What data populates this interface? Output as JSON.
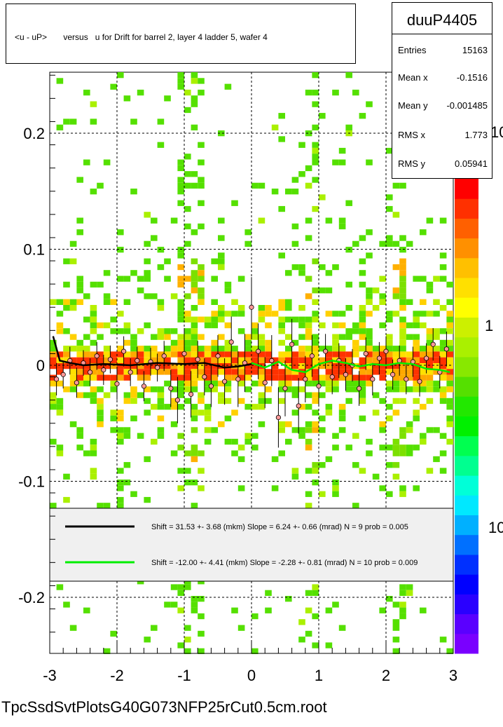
{
  "title": "<u - uP>       versus   u for Drift for barrel 2, layer 4 ladder 5, wafer 4",
  "stats": {
    "name": "duuP4405",
    "rows": [
      {
        "label": "Entries",
        "value": "15163"
      },
      {
        "label": "Mean x",
        "value": "-0.1516"
      },
      {
        "label": "Mean y",
        "value": "-0.001485"
      },
      {
        "label": "RMS x",
        "value": "1.773"
      },
      {
        "label": "RMS y",
        "value": "0.05941"
      }
    ]
  },
  "file_label": "TpcSsdSvtPlotsG40G073NFP25rCut0.5cm.root",
  "legend": [
    {
      "text": "Shift =    31.53 +- 3.68 (mkm) Slope =     6.24 +- 0.66 (mrad)  N = 9 prob = 0.005",
      "color": "#000000"
    },
    {
      "text": "Shift =   -12.00 +- 4.41 (mkm) Slope =    -2.28 +- 0.81 (mrad)  N = 10 prob = 0.009",
      "color": "#00ee00"
    }
  ],
  "colorbar_labels": [
    "10",
    "1",
    "10"
  ],
  "chart_data": {
    "type": "heatmap",
    "xlim": [
      -3,
      3
    ],
    "ylim": [
      -0.25,
      0.25
    ],
    "x_ticks": [
      -3,
      -2,
      -1,
      0,
      1,
      2,
      3
    ],
    "y_ticks": [
      -0.2,
      -0.1,
      0,
      0.1,
      0.2
    ],
    "x_tick_labels": [
      "-3",
      "-2",
      "-1",
      "0",
      "1",
      "2",
      "3"
    ],
    "y_tick_labels": [
      "-0.2",
      "-0.1",
      "0",
      "0.1",
      "0.2"
    ],
    "grid": true,
    "profile_points": {
      "x": [
        -2.9,
        -2.8,
        -2.7,
        -2.6,
        -2.5,
        -2.4,
        -2.3,
        -2.2,
        -2.1,
        -2.0,
        -1.9,
        -1.8,
        -1.7,
        -1.6,
        -1.5,
        -1.4,
        -1.3,
        -1.2,
        -1.1,
        -1.0,
        -0.9,
        -0.8,
        -0.7,
        -0.6,
        -0.5,
        -0.4,
        -0.3,
        -0.2,
        -0.1,
        0.0,
        0.1,
        0.2,
        0.3,
        0.4,
        0.5,
        0.6,
        0.7,
        0.8,
        0.9,
        1.0,
        1.1,
        1.2,
        1.3,
        1.4,
        1.5,
        1.6,
        1.7,
        1.8,
        1.9,
        2.0,
        2.1,
        2.2,
        2.3,
        2.4,
        2.5,
        2.6,
        2.7,
        2.8,
        2.9
      ],
      "y": [
        -0.012,
        -0.008,
        0.004,
        -0.015,
        0.002,
        -0.006,
        0.008,
        -0.004,
        0.005,
        -0.016,
        0.012,
        -0.006,
        0.004,
        -0.018,
        0.003,
        -0.002,
        0.008,
        -0.02,
        -0.03,
        0.01,
        -0.025,
        0.005,
        -0.01,
        -0.018,
        0.008,
        -0.014,
        0.02,
        -0.012,
        0.002,
        0.05,
        0.012,
        -0.015,
        0.004,
        -0.045,
        -0.02,
        0.018,
        -0.035,
        -0.012,
        0.008,
        -0.018,
        0.012,
        -0.01,
        0.004,
        -0.008,
        0.0,
        -0.02,
        0.01,
        -0.012,
        0.006,
        0.012,
        -0.008,
        0.004,
        -0.012,
        0.003,
        -0.014,
        0.006,
        0.018,
        -0.006,
        0.014
      ],
      "err": [
        0.014,
        0.012,
        0.012,
        0.013,
        0.011,
        0.012,
        0.012,
        0.013,
        0.012,
        0.014,
        0.013,
        0.012,
        0.012,
        0.013,
        0.012,
        0.012,
        0.013,
        0.016,
        0.02,
        0.022,
        0.02,
        0.016,
        0.016,
        0.018,
        0.018,
        0.02,
        0.022,
        0.024,
        0.025,
        0.026,
        0.024,
        0.022,
        0.022,
        0.026,
        0.024,
        0.022,
        0.024,
        0.02,
        0.018,
        0.016,
        0.015,
        0.015,
        0.015,
        0.014,
        0.014,
        0.015,
        0.014,
        0.014,
        0.014,
        0.013,
        0.013,
        0.013,
        0.013,
        0.013,
        0.013,
        0.013,
        0.014,
        0.014,
        0.015
      ]
    },
    "fit_black": {
      "x": [
        -2.95,
        -2.85,
        -2.7,
        -2.5,
        -2.2,
        -1.8,
        -1.4,
        -1.0,
        -0.7,
        -0.4,
        -0.2,
        0.0
      ],
      "y": [
        0.025,
        0.004,
        0.002,
        0.0,
        0.001,
        0.0,
        0.002,
        0.001,
        0.002,
        -0.002,
        -0.001,
        0.001
      ]
    },
    "fit_green": {
      "x": [
        0.0,
        0.2,
        0.4,
        0.6,
        0.8,
        1.0,
        1.2,
        1.4,
        1.6,
        1.8,
        2.0,
        2.2,
        2.4,
        2.6,
        2.8,
        2.95
      ],
      "y": [
        0.002,
        -0.002,
        0.003,
        -0.004,
        -0.006,
        0.001,
        0.004,
        0.002,
        -0.001,
        0.001,
        0.0,
        0.002,
        0.001,
        -0.003,
        -0.004,
        -0.006
      ]
    }
  }
}
